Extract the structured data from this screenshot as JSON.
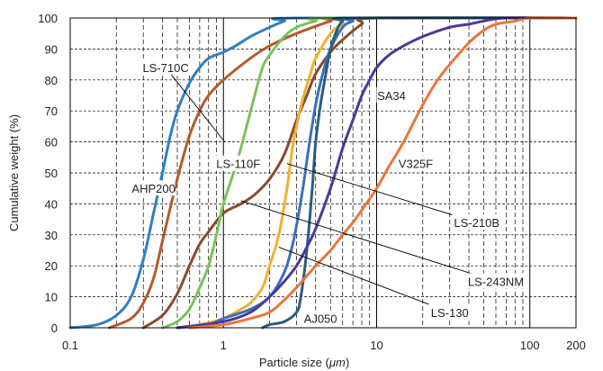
{
  "chart_data": {
    "type": "line",
    "xlabel_prefix": "Particle size (",
    "xlabel_unit": "μm",
    "xlabel_suffix": ")",
    "ylabel": "Cumulative weight (%)",
    "xscale": "log",
    "xlim": [
      0.1,
      200
    ],
    "ylim": [
      0,
      100
    ],
    "grid": true,
    "x_ticks": [
      {
        "value": 0.1,
        "label": "0.1"
      },
      {
        "value": 1,
        "label": "1"
      },
      {
        "value": 10,
        "label": "10"
      },
      {
        "value": 100,
        "label": "100"
      },
      {
        "value": 200,
        "label": "200"
      }
    ],
    "y_ticks": [
      0,
      10,
      20,
      30,
      40,
      50,
      60,
      70,
      80,
      90,
      100
    ],
    "series": [
      {
        "name": "LS-710C",
        "color": "#2f7fc4",
        "points": [
          [
            0.1,
            0
          ],
          [
            0.15,
            1
          ],
          [
            0.2,
            4
          ],
          [
            0.25,
            10
          ],
          [
            0.3,
            22
          ],
          [
            0.35,
            37
          ],
          [
            0.4,
            50
          ],
          [
            0.45,
            62
          ],
          [
            0.5,
            70
          ],
          [
            0.6,
            79
          ],
          [
            0.7,
            84
          ],
          [
            0.8,
            87
          ],
          [
            1,
            89
          ],
          [
            1.2,
            91
          ],
          [
            1.5,
            94
          ],
          [
            2,
            97
          ],
          [
            2.5,
            99
          ],
          [
            3,
            100
          ],
          [
            200,
            100
          ]
        ]
      },
      {
        "name": "LS-110F",
        "color": "#b55a2c",
        "points": [
          [
            0.18,
            0
          ],
          [
            0.25,
            3
          ],
          [
            0.3,
            8
          ],
          [
            0.35,
            16
          ],
          [
            0.4,
            28
          ],
          [
            0.5,
            48
          ],
          [
            0.6,
            62
          ],
          [
            0.7,
            70
          ],
          [
            0.8,
            75
          ],
          [
            1,
            80
          ],
          [
            1.5,
            87
          ],
          [
            2,
            91
          ],
          [
            3,
            95
          ],
          [
            5,
            99
          ],
          [
            6,
            100
          ],
          [
            200,
            100
          ]
        ]
      },
      {
        "name": "AHP200",
        "color": "#8b4a2b",
        "points": [
          [
            0.3,
            0
          ],
          [
            0.4,
            4
          ],
          [
            0.5,
            11
          ],
          [
            0.6,
            20
          ],
          [
            0.7,
            27
          ],
          [
            0.8,
            31
          ],
          [
            1,
            37
          ],
          [
            1.3,
            40
          ],
          [
            1.6,
            43
          ],
          [
            2,
            48
          ],
          [
            2.5,
            56
          ],
          [
            3,
            67
          ],
          [
            3.5,
            75
          ],
          [
            4,
            82
          ],
          [
            5,
            89
          ],
          [
            6,
            93
          ],
          [
            8,
            98
          ],
          [
            10,
            100
          ],
          [
            200,
            100
          ]
        ]
      },
      {
        "name": "LS-210B",
        "color": "#7ac15a",
        "points": [
          [
            0.4,
            0
          ],
          [
            0.5,
            2
          ],
          [
            0.6,
            6
          ],
          [
            0.7,
            13
          ],
          [
            0.8,
            20
          ],
          [
            0.9,
            30
          ],
          [
            1,
            40
          ],
          [
            1.2,
            52
          ],
          [
            1.4,
            64
          ],
          [
            1.6,
            75
          ],
          [
            1.8,
            84
          ],
          [
            2,
            88
          ],
          [
            2.5,
            94
          ],
          [
            3,
            97
          ],
          [
            4,
            99
          ],
          [
            5,
            100
          ],
          [
            200,
            100
          ]
        ]
      },
      {
        "name": "LS-130",
        "color": "#f0b030",
        "points": [
          [
            0.5,
            0
          ],
          [
            0.7,
            1
          ],
          [
            1,
            3
          ],
          [
            1.3,
            6
          ],
          [
            1.5,
            8
          ],
          [
            1.8,
            13
          ],
          [
            2,
            20
          ],
          [
            2.3,
            30
          ],
          [
            2.6,
            45
          ],
          [
            2.8,
            57
          ],
          [
            3,
            65
          ],
          [
            3.3,
            74
          ],
          [
            3.7,
            82
          ],
          [
            4,
            87
          ],
          [
            5,
            95
          ],
          [
            6,
            98
          ],
          [
            8,
            100
          ],
          [
            200,
            100
          ]
        ]
      },
      {
        "name": "LS-243NM",
        "color": "#3a6ec0",
        "points": [
          [
            0.5,
            0
          ],
          [
            0.8,
            1
          ],
          [
            1,
            3
          ],
          [
            1.5,
            6
          ],
          [
            2,
            10
          ],
          [
            2.5,
            18
          ],
          [
            2.8,
            26
          ],
          [
            3,
            33
          ],
          [
            3.3,
            45
          ],
          [
            3.6,
            58
          ],
          [
            4,
            72
          ],
          [
            4.5,
            83
          ],
          [
            5,
            90
          ],
          [
            6,
            97
          ],
          [
            7,
            99
          ],
          [
            8,
            100
          ],
          [
            200,
            100
          ]
        ]
      },
      {
        "name": "AJ050",
        "color": "#2a5d80",
        "points": [
          [
            1.8,
            0
          ],
          [
            2,
            1
          ],
          [
            2.5,
            2
          ],
          [
            3,
            5
          ],
          [
            3.2,
            10
          ],
          [
            3.5,
            25
          ],
          [
            3.8,
            45
          ],
          [
            4,
            60
          ],
          [
            4.3,
            72
          ],
          [
            4.7,
            83
          ],
          [
            5,
            90
          ],
          [
            5.5,
            96
          ],
          [
            6,
            99
          ],
          [
            7,
            100
          ],
          [
            200,
            100
          ]
        ]
      },
      {
        "name": "SA34",
        "color": "#4a3a96",
        "points": [
          [
            0.5,
            0
          ],
          [
            1,
            2
          ],
          [
            1.5,
            5
          ],
          [
            2,
            10
          ],
          [
            2.5,
            15
          ],
          [
            3,
            20
          ],
          [
            3.5,
            26
          ],
          [
            4,
            32
          ],
          [
            5,
            45
          ],
          [
            6,
            58
          ],
          [
            7,
            67
          ],
          [
            8,
            75
          ],
          [
            9,
            80
          ],
          [
            10,
            84
          ],
          [
            12,
            88
          ],
          [
            15,
            91
          ],
          [
            20,
            94
          ],
          [
            30,
            97
          ],
          [
            40,
            98
          ],
          [
            50,
            99
          ],
          [
            70,
            100
          ],
          [
            200,
            100
          ]
        ]
      },
      {
        "name": "V325F",
        "color": "#e8773a",
        "points": [
          [
            0.6,
            0
          ],
          [
            1,
            1
          ],
          [
            1.5,
            3
          ],
          [
            2,
            5
          ],
          [
            2.5,
            9
          ],
          [
            3,
            13
          ],
          [
            4,
            20
          ],
          [
            5,
            25
          ],
          [
            6,
            30
          ],
          [
            7,
            34
          ],
          [
            8,
            38
          ],
          [
            10,
            45
          ],
          [
            12,
            52
          ],
          [
            15,
            60
          ],
          [
            20,
            72
          ],
          [
            25,
            80
          ],
          [
            30,
            85
          ],
          [
            40,
            92
          ],
          [
            50,
            96
          ],
          [
            60,
            98
          ],
          [
            80,
            99
          ],
          [
            100,
            100
          ],
          [
            200,
            100
          ]
        ]
      }
    ],
    "annotations": [
      {
        "text": "LS-710C",
        "x": 0.42,
        "y": 84,
        "leader_to": [
          1.02,
          60
        ]
      },
      {
        "text": "LS-110F",
        "x": 1.25,
        "y": 53
      },
      {
        "text": "AHP200",
        "x": 0.35,
        "y": 45
      },
      {
        "text": "SA34",
        "x": 12.5,
        "y": 75
      },
      {
        "text": "V325F",
        "x": 18,
        "y": 53
      },
      {
        "text": "LS-210B",
        "x": 45,
        "y": 34,
        "leader_to": [
          2.6,
          53
        ]
      },
      {
        "text": "LS-243NM",
        "x": 60,
        "y": 15,
        "leader_to": [
          1.3,
          41
        ]
      },
      {
        "text": "LS-130",
        "x": 30,
        "y": 5,
        "leader_to": [
          2.3,
          26
        ]
      },
      {
        "text": "AJ050",
        "x": 4.3,
        "y": 3
      }
    ]
  }
}
